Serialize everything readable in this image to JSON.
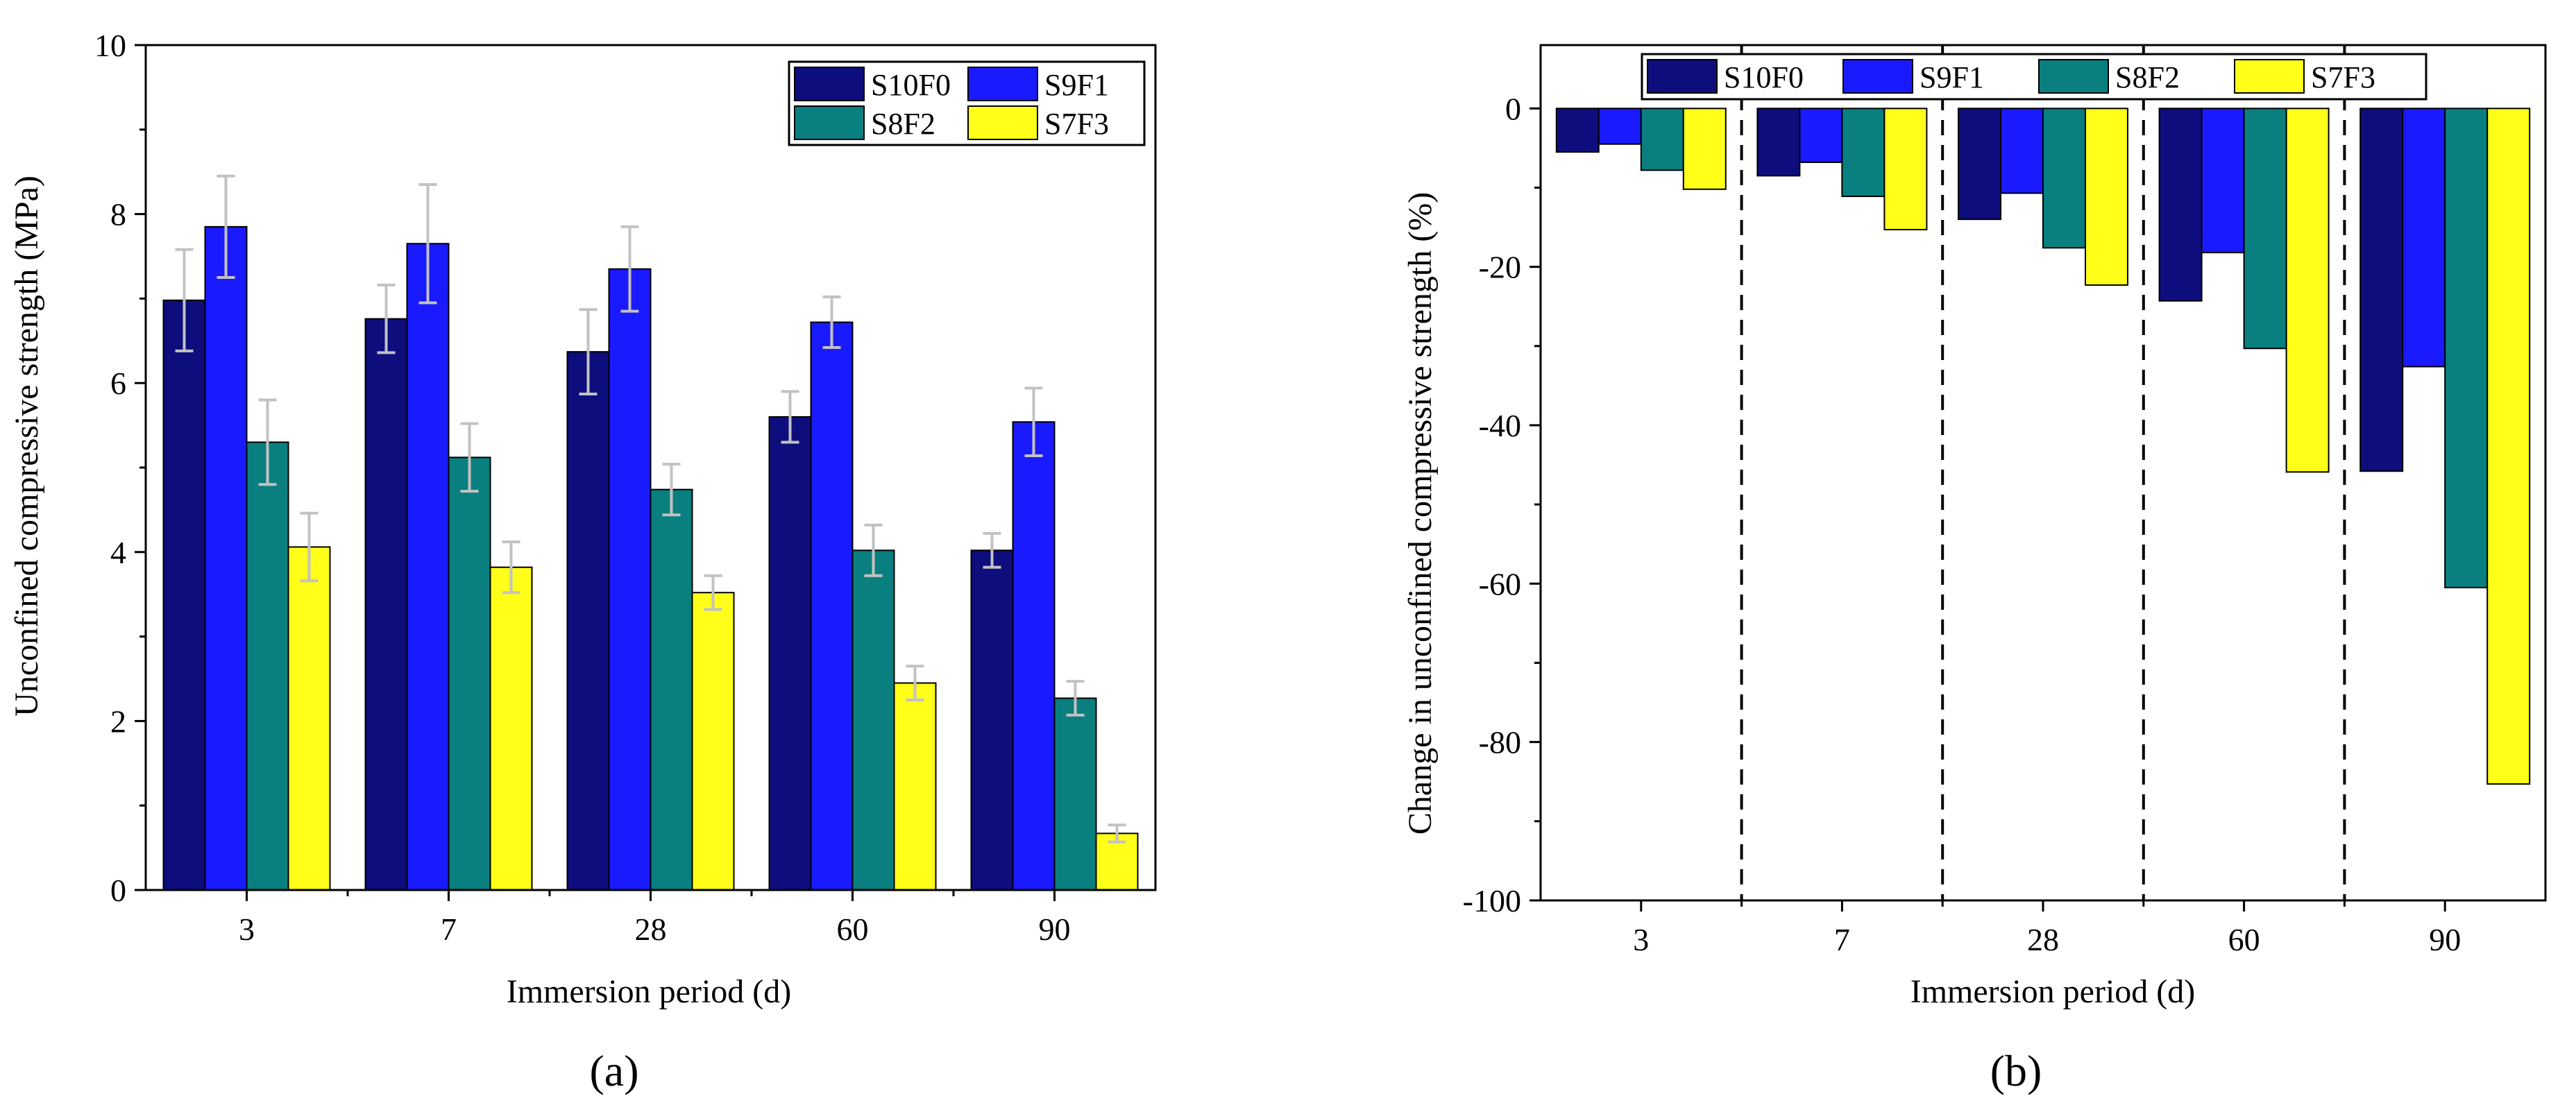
{
  "chart_data": [
    {
      "type": "bar",
      "panel_label": "(a)",
      "xlabel": "Immersion period (d)",
      "ylabel": "Unconfined compressive strength (MPa)",
      "ylim": [
        0,
        10
      ],
      "yticks": [
        "0",
        "2",
        "4",
        "6",
        "8",
        "10"
      ],
      "categories": [
        "3",
        "7",
        "28",
        "60",
        "90"
      ],
      "legend_position": "top-right",
      "series": [
        {
          "name": "S10F0",
          "color": "#0d0d7d",
          "values": [
            6.98,
            6.76,
            6.37,
            5.6,
            4.02
          ],
          "errors": [
            0.6,
            0.4,
            0.5,
            0.3,
            0.2
          ]
        },
        {
          "name": "S9F1",
          "color": "#1a1aff",
          "values": [
            7.85,
            7.65,
            7.35,
            6.72,
            5.54
          ],
          "errors": [
            0.6,
            0.7,
            0.5,
            0.3,
            0.4
          ]
        },
        {
          "name": "S8F2",
          "color": "#0a7f7f",
          "values": [
            5.3,
            5.12,
            4.74,
            4.02,
            2.27
          ],
          "errors": [
            0.5,
            0.4,
            0.3,
            0.3,
            0.2
          ]
        },
        {
          "name": "S7F3",
          "color": "#ffff1a",
          "values": [
            4.06,
            3.82,
            3.52,
            2.45,
            0.67
          ],
          "errors": [
            0.4,
            0.3,
            0.2,
            0.2,
            0.1
          ]
        }
      ]
    },
    {
      "type": "bar",
      "panel_label": "(b)",
      "xlabel": "Immersion period (d)",
      "ylabel": "Change in unconfined compressive strength (%)",
      "ylim": [
        -100,
        8
      ],
      "yticks": [
        "0",
        "-20",
        "-40",
        "-60",
        "-80",
        "-100"
      ],
      "categories": [
        "3",
        "7",
        "28",
        "60",
        "90"
      ],
      "legend_position": "top",
      "group_separators": "dashed",
      "series": [
        {
          "name": "S10F0",
          "color": "#0d0d7d",
          "values": [
            -5.5,
            -8.5,
            -14.0,
            -24.3,
            -45.8
          ]
        },
        {
          "name": "S9F1",
          "color": "#1a1aff",
          "values": [
            -4.5,
            -6.8,
            -10.7,
            -18.2,
            -32.6
          ]
        },
        {
          "name": "S8F2",
          "color": "#0a7f7f",
          "values": [
            -7.8,
            -11.1,
            -17.6,
            -30.3,
            -60.5
          ]
        },
        {
          "name": "S7F3",
          "color": "#ffff1a",
          "values": [
            -10.2,
            -15.3,
            -22.3,
            -45.9,
            -85.3
          ]
        }
      ]
    }
  ]
}
